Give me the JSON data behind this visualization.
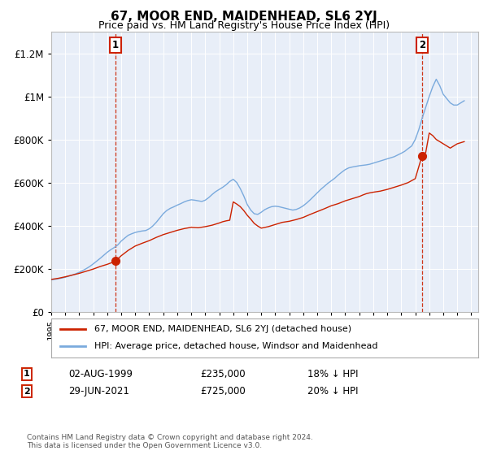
{
  "title": "67, MOOR END, MAIDENHEAD, SL6 2YJ",
  "subtitle": "Price paid vs. HM Land Registry's House Price Index (HPI)",
  "hpi_label": "HPI: Average price, detached house, Windsor and Maidenhead",
  "property_label": "67, MOOR END, MAIDENHEAD, SL6 2YJ (detached house)",
  "footer": "Contains HM Land Registry data © Crown copyright and database right 2024.\nThis data is licensed under the Open Government Licence v3.0.",
  "sale1_date": "02-AUG-1999",
  "sale1_price": 235000,
  "sale1_hpi_diff": "18% ↓ HPI",
  "sale1_x": 1999.58,
  "sale2_date": "29-JUN-2021",
  "sale2_price": 725000,
  "sale2_hpi_diff": "20% ↓ HPI",
  "sale2_x": 2021.49,
  "hpi_color": "#7aaadd",
  "property_color": "#cc2200",
  "vline_color": "#cc2200",
  "plot_bg_color": "#e8eef8",
  "ylim": [
    0,
    1300000
  ],
  "xlim_start": 1995,
  "xlim_end": 2025.5,
  "hpi_years": [
    1995.0,
    1995.25,
    1995.5,
    1995.75,
    1996.0,
    1996.25,
    1996.5,
    1996.75,
    1997.0,
    1997.25,
    1997.5,
    1997.75,
    1998.0,
    1998.25,
    1998.5,
    1998.75,
    1999.0,
    1999.25,
    1999.5,
    1999.75,
    2000.0,
    2000.25,
    2000.5,
    2000.75,
    2001.0,
    2001.25,
    2001.5,
    2001.75,
    2002.0,
    2002.25,
    2002.5,
    2002.75,
    2003.0,
    2003.25,
    2003.5,
    2003.75,
    2004.0,
    2004.25,
    2004.5,
    2004.75,
    2005.0,
    2005.25,
    2005.5,
    2005.75,
    2006.0,
    2006.25,
    2006.5,
    2006.75,
    2007.0,
    2007.25,
    2007.5,
    2007.75,
    2008.0,
    2008.25,
    2008.5,
    2008.75,
    2009.0,
    2009.25,
    2009.5,
    2009.75,
    2010.0,
    2010.25,
    2010.5,
    2010.75,
    2011.0,
    2011.25,
    2011.5,
    2011.75,
    2012.0,
    2012.25,
    2012.5,
    2012.75,
    2013.0,
    2013.25,
    2013.5,
    2013.75,
    2014.0,
    2014.25,
    2014.5,
    2014.75,
    2015.0,
    2015.25,
    2015.5,
    2015.75,
    2016.0,
    2016.25,
    2016.5,
    2016.75,
    2017.0,
    2017.25,
    2017.5,
    2017.75,
    2018.0,
    2018.25,
    2018.5,
    2018.75,
    2019.0,
    2019.25,
    2019.5,
    2019.75,
    2020.0,
    2020.25,
    2020.5,
    2020.75,
    2021.0,
    2021.25,
    2021.5,
    2021.75,
    2022.0,
    2022.25,
    2022.5,
    2022.75,
    2023.0,
    2023.25,
    2023.5,
    2023.75,
    2024.0,
    2024.25,
    2024.5
  ],
  "hpi_values": [
    148000,
    150000,
    153000,
    156000,
    160000,
    165000,
    170000,
    176000,
    183000,
    191000,
    200000,
    210000,
    222000,
    235000,
    248000,
    262000,
    276000,
    288000,
    298000,
    310000,
    328000,
    342000,
    355000,
    362000,
    368000,
    372000,
    375000,
    377000,
    385000,
    398000,
    415000,
    435000,
    455000,
    470000,
    480000,
    487000,
    495000,
    502000,
    510000,
    516000,
    520000,
    518000,
    515000,
    512000,
    518000,
    530000,
    545000,
    558000,
    568000,
    578000,
    590000,
    605000,
    615000,
    600000,
    572000,
    538000,
    498000,
    472000,
    455000,
    452000,
    462000,
    474000,
    482000,
    488000,
    490000,
    488000,
    484000,
    480000,
    476000,
    472000,
    475000,
    482000,
    492000,
    505000,
    520000,
    536000,
    552000,
    568000,
    582000,
    596000,
    608000,
    620000,
    635000,
    648000,
    660000,
    668000,
    672000,
    675000,
    678000,
    680000,
    682000,
    685000,
    690000,
    695000,
    700000,
    705000,
    710000,
    715000,
    720000,
    728000,
    736000,
    745000,
    758000,
    770000,
    800000,
    845000,
    900000,
    950000,
    1000000,
    1045000,
    1080000,
    1050000,
    1010000,
    990000,
    970000,
    960000,
    960000,
    970000,
    980000
  ],
  "prop_years": [
    1995.0,
    1995.5,
    1996.0,
    1996.5,
    1997.0,
    1997.5,
    1998.0,
    1998.5,
    1999.0,
    1999.5,
    1999.58,
    2000.0,
    2000.5,
    2001.0,
    2001.5,
    2002.0,
    2002.5,
    2003.0,
    2003.5,
    2004.0,
    2004.5,
    2005.0,
    2005.5,
    2006.0,
    2006.5,
    2007.0,
    2007.25,
    2007.5,
    2007.75,
    2008.0,
    2008.25,
    2008.5,
    2008.75,
    2009.0,
    2009.25,
    2009.5,
    2009.75,
    2010.0,
    2010.5,
    2011.0,
    2011.5,
    2012.0,
    2012.5,
    2013.0,
    2013.5,
    2014.0,
    2014.5,
    2015.0,
    2015.5,
    2016.0,
    2016.5,
    2017.0,
    2017.25,
    2017.5,
    2017.75,
    2018.0,
    2018.5,
    2019.0,
    2019.5,
    2020.0,
    2020.5,
    2021.0,
    2021.49,
    2021.75,
    2022.0,
    2022.25,
    2022.5,
    2022.75,
    2023.0,
    2023.5,
    2024.0,
    2024.5
  ],
  "prop_values": [
    150000,
    155000,
    162000,
    170000,
    178000,
    188000,
    198000,
    210000,
    220000,
    232000,
    235000,
    260000,
    285000,
    305000,
    318000,
    330000,
    345000,
    358000,
    368000,
    378000,
    386000,
    392000,
    390000,
    395000,
    402000,
    412000,
    418000,
    422000,
    425000,
    510000,
    500000,
    488000,
    470000,
    448000,
    430000,
    410000,
    398000,
    388000,
    395000,
    405000,
    415000,
    420000,
    428000,
    438000,
    452000,
    465000,
    478000,
    492000,
    502000,
    515000,
    525000,
    535000,
    542000,
    548000,
    552000,
    555000,
    560000,
    568000,
    578000,
    588000,
    600000,
    618000,
    725000,
    740000,
    830000,
    818000,
    800000,
    790000,
    780000,
    760000,
    780000,
    790000
  ]
}
